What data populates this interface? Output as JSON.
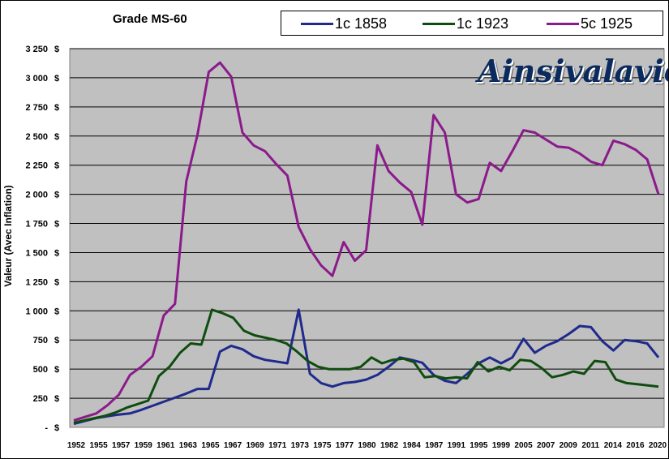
{
  "chart_data": {
    "type": "line",
    "title": "Grade MS-60",
    "ylabel": "Valeur (Avec Inflation)",
    "xlabel": "",
    "ylim": [
      0,
      3250
    ],
    "grid": true,
    "legend_position": "top",
    "y_tick_values": [
      0,
      250,
      500,
      750,
      1000,
      1250,
      1500,
      1750,
      2000,
      2250,
      2500,
      2750,
      3000,
      3250
    ],
    "y_tick_labels": [
      "-",
      "250",
      "500",
      "750",
      "1 000",
      "1 250",
      "1 500",
      "1 750",
      "2 000",
      "2 250",
      "2 500",
      "2 750",
      "3 000",
      "3 250"
    ],
    "y_unit": "$",
    "x_labels": [
      "1952",
      "1955",
      "1957",
      "1959",
      "1961",
      "1963",
      "1965",
      "1967",
      "1969",
      "1971",
      "1973",
      "1975",
      "1977",
      "1980",
      "1982",
      "1984",
      "1987",
      "1991",
      "1995",
      "1999",
      "2005",
      "2007",
      "2009",
      "2011",
      "2014",
      "2016",
      "2020"
    ],
    "series": [
      {
        "name": "1c 1858",
        "color": "#1f2a8c",
        "values": [
          30,
          55,
          80,
          95,
          110,
          120,
          150,
          185,
          220,
          255,
          290,
          330,
          330,
          650,
          700,
          670,
          610,
          580,
          565,
          550,
          1010,
          460,
          380,
          350,
          380,
          390,
          410,
          450,
          520,
          600,
          580,
          555,
          450,
          400,
          380,
          460,
          550,
          600,
          550,
          600,
          760,
          640,
          700,
          740,
          800,
          870,
          860,
          740,
          660,
          750,
          740,
          720,
          600
        ]
      },
      {
        "name": "1c 1923",
        "color": "#0f4d0f",
        "values": [
          40,
          60,
          80,
          100,
          130,
          170,
          200,
          230,
          440,
          520,
          640,
          720,
          710,
          1010,
          980,
          940,
          830,
          790,
          770,
          750,
          720,
          650,
          570,
          520,
          500,
          500,
          500,
          520,
          600,
          550,
          580,
          590,
          560,
          430,
          440,
          420,
          430,
          420,
          560,
          480,
          520,
          490,
          580,
          570,
          510,
          430,
          450,
          480,
          460,
          570,
          560,
          410,
          380,
          370,
          360,
          350
        ]
      },
      {
        "name": "5c 1925",
        "color": "#8b1a8b",
        "values": [
          60,
          90,
          120,
          190,
          280,
          450,
          520,
          610,
          960,
          1060,
          2110,
          2510,
          3050,
          3130,
          3010,
          2530,
          2420,
          2370,
          2260,
          2160,
          1720,
          1530,
          1390,
          1300,
          1590,
          1430,
          1520,
          2420,
          2200,
          2100,
          2020,
          1740,
          2680,
          2530,
          2000,
          1930,
          1960,
          2270,
          2200,
          2370,
          2550,
          2530,
          2470,
          2410,
          2400,
          2350,
          2280,
          2250,
          2460,
          2430,
          2380,
          2300,
          2000
        ]
      }
    ]
  },
  "watermark_text": "Ainsivalavie"
}
